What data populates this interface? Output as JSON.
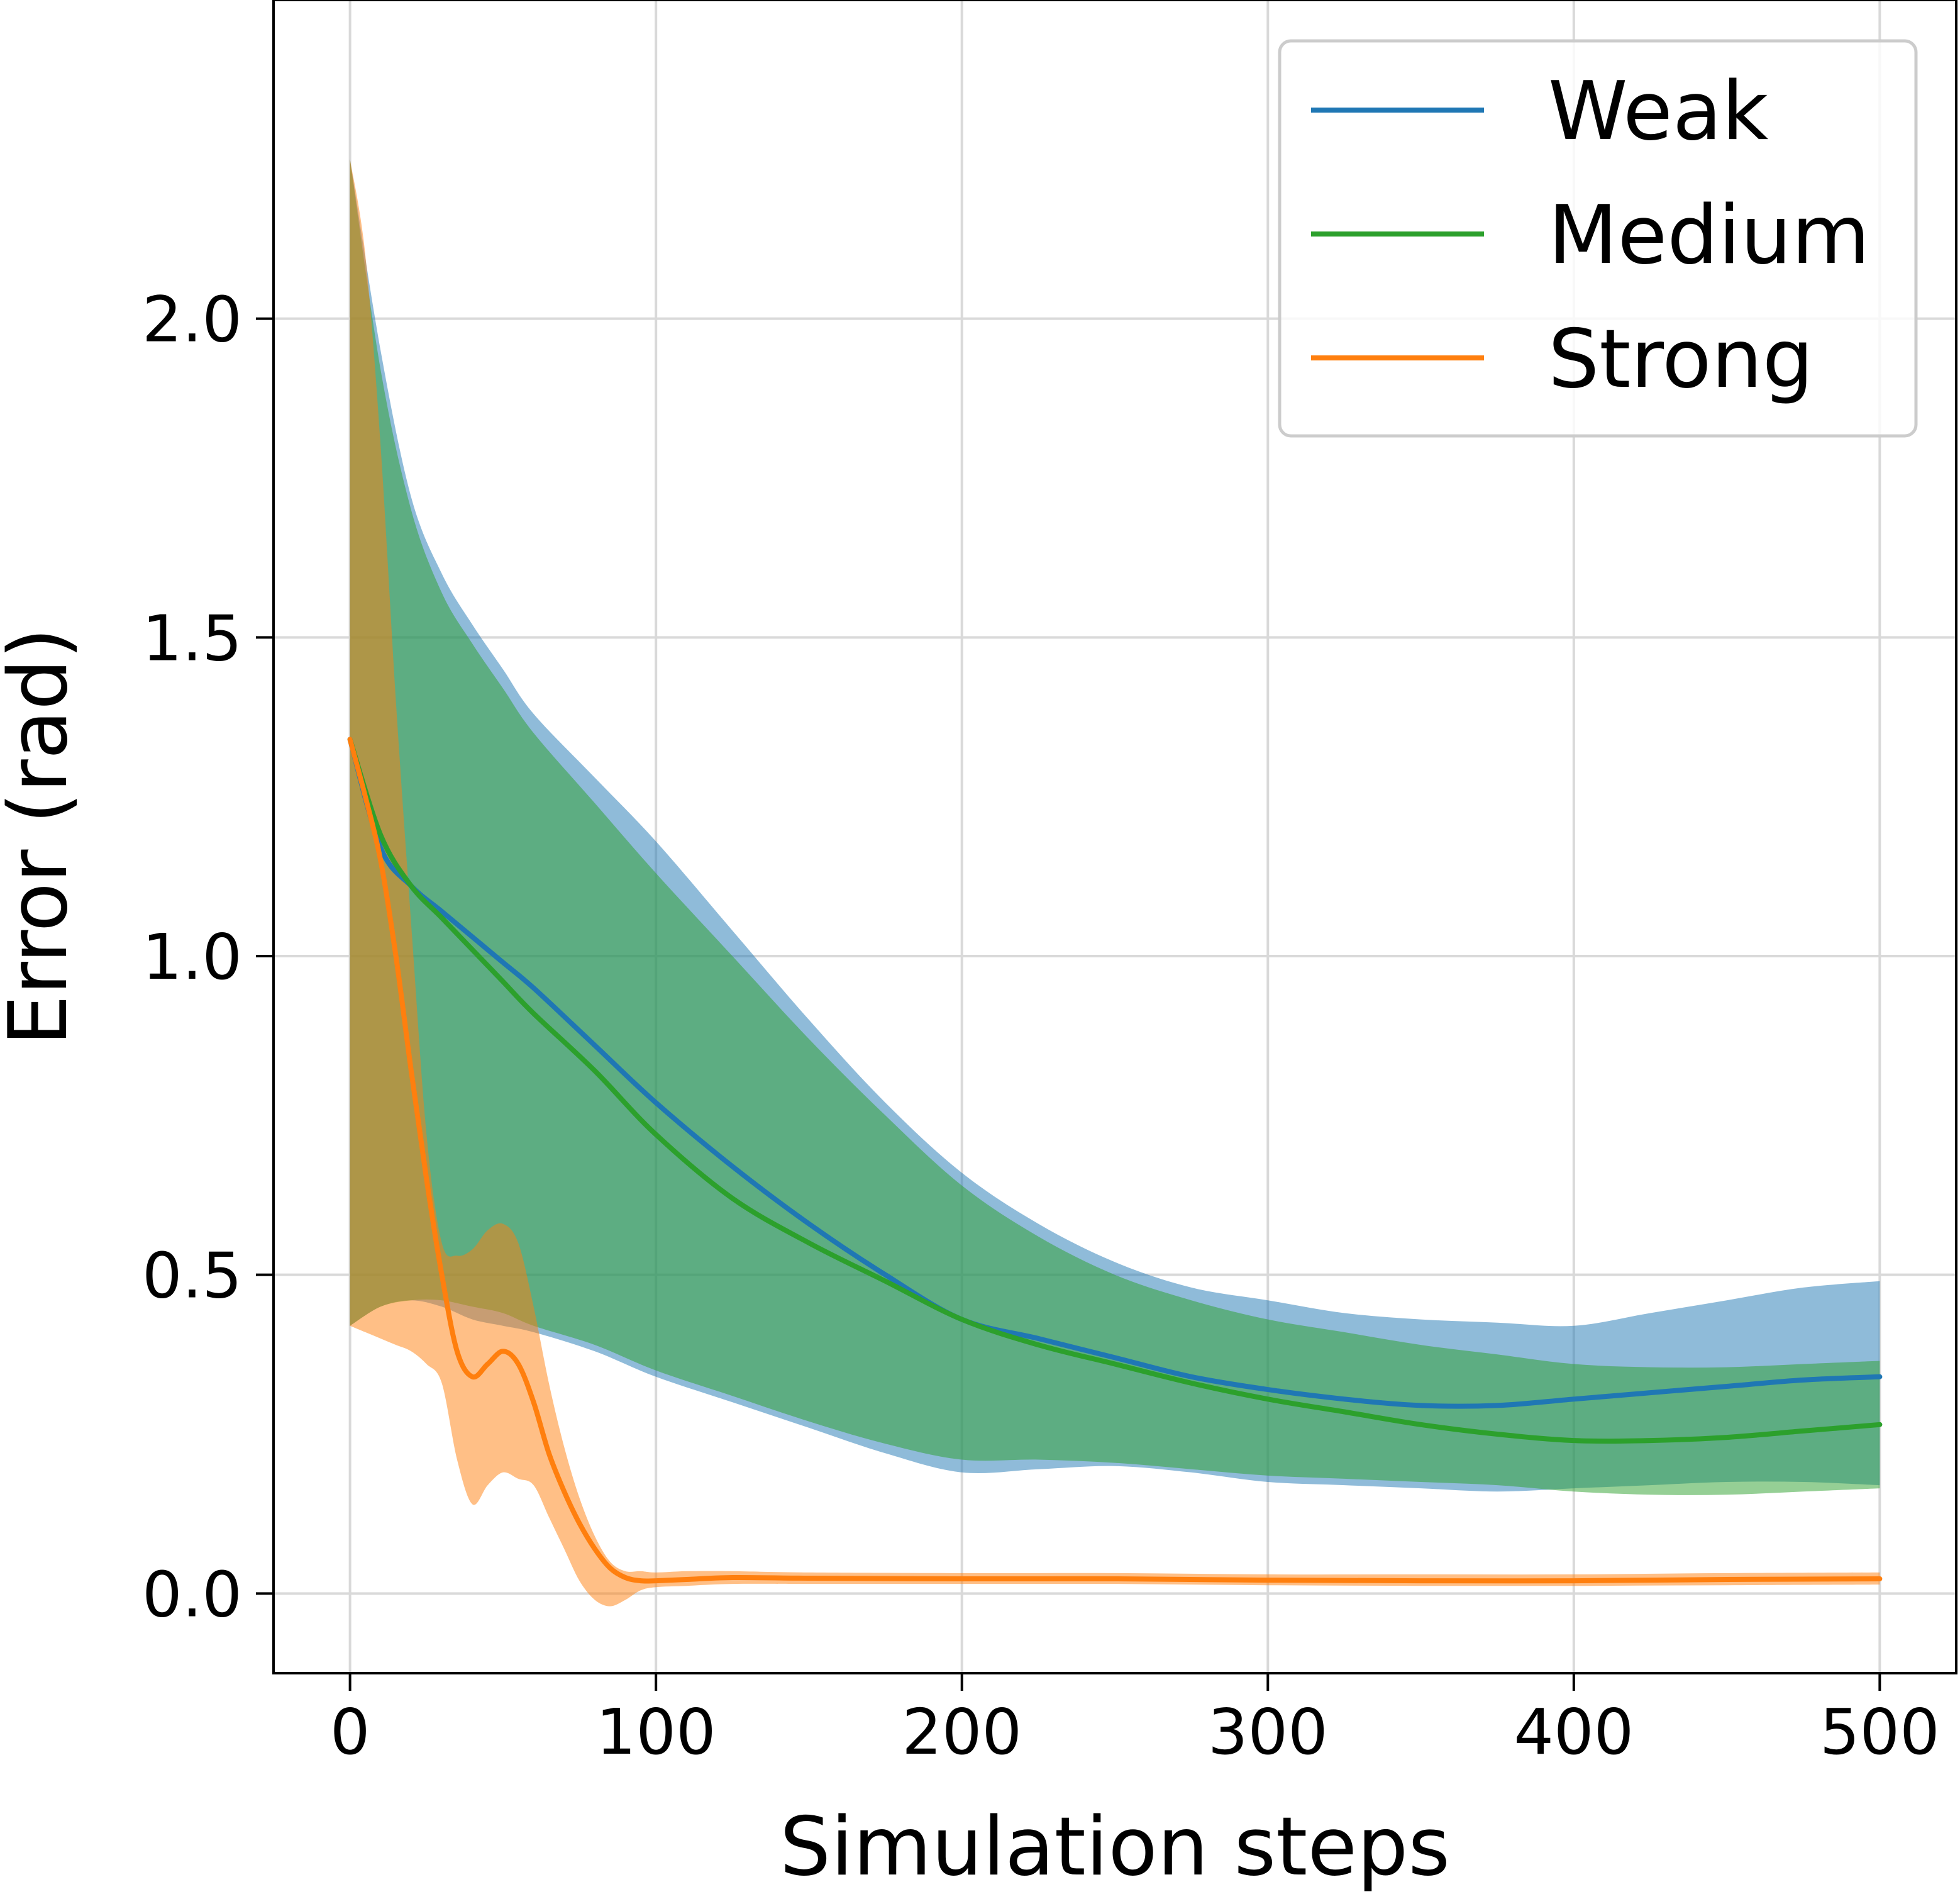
{
  "chart_data": {
    "type": "line",
    "title": "",
    "xlabel": "Simulation steps",
    "ylabel": "Error (rad)",
    "xlim": [
      -25,
      525
    ],
    "ylim": [
      -0.125,
      2.5
    ],
    "x_ticks": [
      0,
      100,
      200,
      300,
      400,
      500
    ],
    "x_tick_labels": [
      "0",
      "100",
      "200",
      "300",
      "400",
      "500"
    ],
    "y_ticks": [
      0.0,
      0.5,
      1.0,
      1.5,
      2.0
    ],
    "y_tick_labels": [
      "0.0",
      "0.5",
      "1.0",
      "1.5",
      "2.0"
    ],
    "grid": true,
    "legend_position": "top-right",
    "series": [
      {
        "name": "Weak",
        "color": "#1f77b4",
        "x": [
          0,
          10,
          20,
          30,
          40,
          50,
          60,
          80,
          100,
          125,
          150,
          175,
          200,
          225,
          250,
          275,
          300,
          325,
          350,
          375,
          400,
          425,
          450,
          475,
          500
        ],
        "values": [
          1.34,
          1.17,
          1.11,
          1.07,
          1.03,
          0.99,
          0.95,
          0.86,
          0.77,
          0.67,
          0.58,
          0.5,
          0.43,
          0.4,
          0.37,
          0.34,
          0.32,
          0.305,
          0.295,
          0.295,
          0.305,
          0.315,
          0.325,
          0.335,
          0.34
        ],
        "band_upper": [
          2.25,
          1.95,
          1.72,
          1.6,
          1.52,
          1.45,
          1.38,
          1.28,
          1.18,
          1.04,
          0.9,
          0.77,
          0.66,
          0.58,
          0.52,
          0.48,
          0.46,
          0.44,
          0.43,
          0.425,
          0.42,
          0.44,
          0.46,
          0.48,
          0.49
        ],
        "band_lower": [
          0.42,
          0.45,
          0.46,
          0.45,
          0.43,
          0.42,
          0.41,
          0.38,
          0.34,
          0.3,
          0.26,
          0.22,
          0.19,
          0.195,
          0.2,
          0.19,
          0.175,
          0.17,
          0.165,
          0.16,
          0.165,
          0.17,
          0.175,
          0.175,
          0.17
        ]
      },
      {
        "name": "Medium",
        "color": "#2ca02c",
        "x": [
          0,
          10,
          20,
          30,
          40,
          50,
          60,
          80,
          100,
          125,
          150,
          175,
          200,
          225,
          250,
          275,
          300,
          325,
          350,
          375,
          400,
          425,
          450,
          475,
          500
        ],
        "values": [
          1.34,
          1.19,
          1.11,
          1.06,
          1.01,
          0.96,
          0.91,
          0.82,
          0.72,
          0.62,
          0.55,
          0.49,
          0.43,
          0.39,
          0.36,
          0.33,
          0.305,
          0.285,
          0.265,
          0.25,
          0.24,
          0.24,
          0.245,
          0.255,
          0.265
        ],
        "band_upper": [
          2.25,
          1.92,
          1.7,
          1.57,
          1.49,
          1.42,
          1.35,
          1.24,
          1.13,
          1.0,
          0.87,
          0.75,
          0.64,
          0.56,
          0.5,
          0.46,
          0.43,
          0.41,
          0.39,
          0.375,
          0.36,
          0.355,
          0.355,
          0.36,
          0.365
        ],
        "band_lower": [
          0.42,
          0.45,
          0.46,
          0.46,
          0.45,
          0.44,
          0.42,
          0.39,
          0.35,
          0.31,
          0.27,
          0.235,
          0.21,
          0.21,
          0.205,
          0.195,
          0.185,
          0.18,
          0.175,
          0.17,
          0.16,
          0.155,
          0.155,
          0.16,
          0.165
        ]
      },
      {
        "name": "Strong",
        "color": "#ff7f0e",
        "x": [
          0,
          5,
          10,
          15,
          20,
          25,
          30,
          35,
          40,
          45,
          50,
          55,
          60,
          65,
          70,
          75,
          80,
          85,
          90,
          95,
          100,
          110,
          125,
          150,
          200,
          250,
          300,
          350,
          400,
          450,
          500
        ],
        "values": [
          1.34,
          1.25,
          1.15,
          1.0,
          0.82,
          0.65,
          0.5,
          0.38,
          0.34,
          0.36,
          0.38,
          0.36,
          0.3,
          0.22,
          0.16,
          0.11,
          0.07,
          0.04,
          0.025,
          0.02,
          0.02,
          0.022,
          0.025,
          0.024,
          0.023,
          0.023,
          0.021,
          0.02,
          0.02,
          0.022,
          0.023
        ],
        "band_upper": [
          2.25,
          2.1,
          1.8,
          1.4,
          1.05,
          0.72,
          0.55,
          0.53,
          0.54,
          0.57,
          0.58,
          0.55,
          0.45,
          0.33,
          0.23,
          0.15,
          0.09,
          0.05,
          0.035,
          0.035,
          0.033,
          0.035,
          0.035,
          0.033,
          0.032,
          0.032,
          0.03,
          0.03,
          0.03,
          0.032,
          0.033
        ],
        "band_lower": [
          0.42,
          0.41,
          0.4,
          0.39,
          0.38,
          0.36,
          0.33,
          0.21,
          0.14,
          0.17,
          0.19,
          0.18,
          0.17,
          0.12,
          0.07,
          0.02,
          -0.01,
          -0.02,
          -0.01,
          0.005,
          0.01,
          0.012,
          0.015,
          0.015,
          0.015,
          0.015,
          0.013,
          0.012,
          0.012,
          0.013,
          0.014
        ]
      }
    ]
  }
}
